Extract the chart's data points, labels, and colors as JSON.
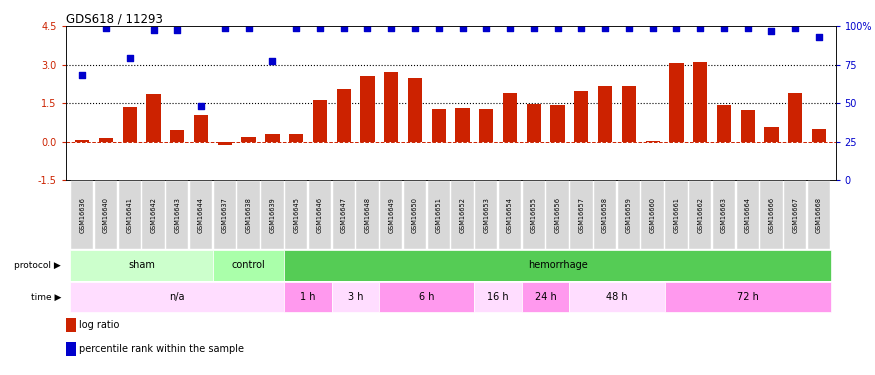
{
  "title": "GDS618 / 11293",
  "samples": [
    "GSM16636",
    "GSM16640",
    "GSM16641",
    "GSM16642",
    "GSM16643",
    "GSM16644",
    "GSM16637",
    "GSM16638",
    "GSM16639",
    "GSM16645",
    "GSM16646",
    "GSM16647",
    "GSM16648",
    "GSM16649",
    "GSM16650",
    "GSM16651",
    "GSM16652",
    "GSM16653",
    "GSM16654",
    "GSM16655",
    "GSM16656",
    "GSM16657",
    "GSM16658",
    "GSM16659",
    "GSM16660",
    "GSM16661",
    "GSM16662",
    "GSM16663",
    "GSM16664",
    "GSM16666",
    "GSM16667",
    "GSM16668"
  ],
  "log_ratio": [
    0.08,
    0.13,
    1.35,
    1.85,
    0.45,
    1.05,
    -0.12,
    0.18,
    0.28,
    0.28,
    1.62,
    2.05,
    2.55,
    2.72,
    2.48,
    1.28,
    1.32,
    1.28,
    1.88,
    1.48,
    1.42,
    1.98,
    2.15,
    2.15,
    0.04,
    3.08,
    3.1,
    1.42,
    1.22,
    0.58,
    1.88,
    0.48
  ],
  "percentile_left": [
    2.6,
    4.42,
    3.25,
    4.35,
    4.35,
    1.38,
    4.42,
    4.42,
    3.15,
    4.42,
    4.42,
    4.42,
    4.42,
    4.42,
    4.42,
    4.42,
    4.42,
    4.42,
    4.42,
    4.42,
    4.42,
    4.42,
    4.42,
    4.42,
    4.42,
    4.42,
    4.42,
    4.42,
    4.42,
    4.3,
    4.42,
    4.1
  ],
  "protocol_groups": [
    {
      "label": "sham",
      "start": 0,
      "end": 6,
      "color": "#ccffcc"
    },
    {
      "label": "control",
      "start": 6,
      "end": 9,
      "color": "#aaffaa"
    },
    {
      "label": "hemorrhage",
      "start": 9,
      "end": 32,
      "color": "#55cc55"
    }
  ],
  "time_groups": [
    {
      "label": "n/a",
      "start": 0,
      "end": 9,
      "color": "#ffddff"
    },
    {
      "label": "1 h",
      "start": 9,
      "end": 11,
      "color": "#ff99ee"
    },
    {
      "label": "3 h",
      "start": 11,
      "end": 13,
      "color": "#ffddff"
    },
    {
      "label": "6 h",
      "start": 13,
      "end": 17,
      "color": "#ff99ee"
    },
    {
      "label": "16 h",
      "start": 17,
      "end": 19,
      "color": "#ffddff"
    },
    {
      "label": "24 h",
      "start": 19,
      "end": 21,
      "color": "#ff99ee"
    },
    {
      "label": "48 h",
      "start": 21,
      "end": 25,
      "color": "#ffddff"
    },
    {
      "label": "72 h",
      "start": 25,
      "end": 32,
      "color": "#ff99ee"
    }
  ],
  "bar_color": "#cc2200",
  "dot_color": "#0000cc",
  "ylim_left": [
    -1.5,
    4.5
  ],
  "ylim_right": [
    0,
    100
  ],
  "left_ticks": [
    -1.5,
    0.0,
    1.5,
    3.0,
    4.5
  ],
  "right_ticks": [
    0,
    25,
    50,
    75,
    100
  ],
  "right_tick_labels": [
    "0",
    "25",
    "50",
    "75",
    "100%"
  ]
}
